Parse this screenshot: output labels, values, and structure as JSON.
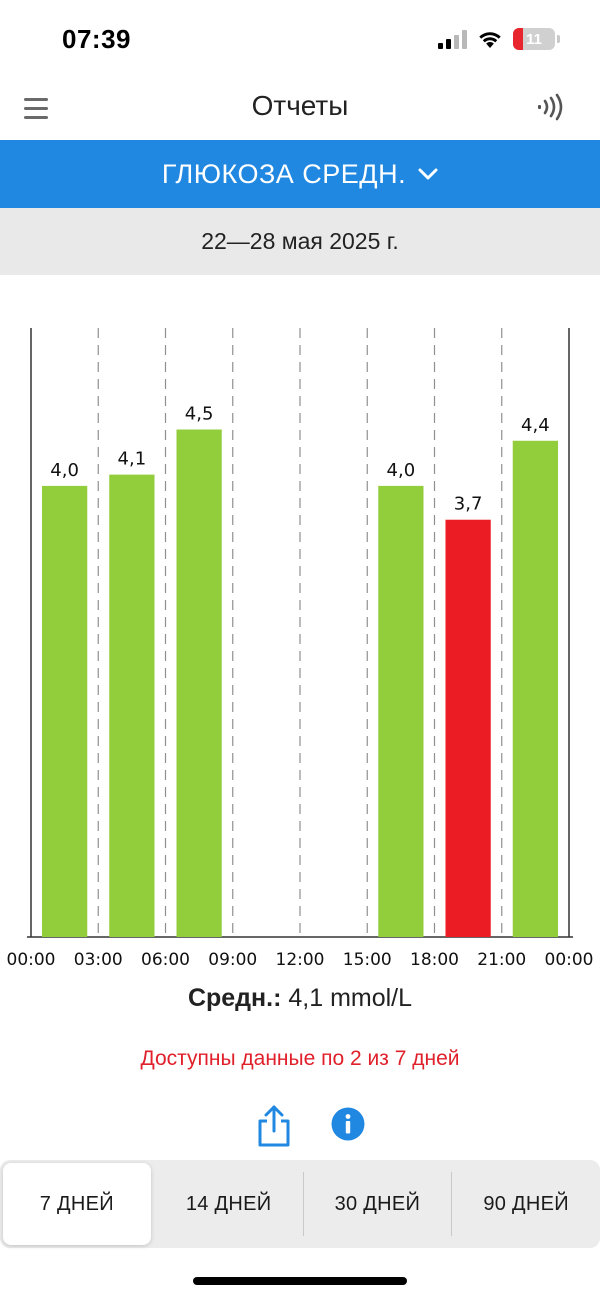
{
  "status_bar": {
    "time": "07:39",
    "battery_level": "11"
  },
  "nav": {
    "title": "Отчеты"
  },
  "metric_selector": {
    "label": "ГЛЮКОЗА СРЕДН."
  },
  "date_range": "22—28 мая 2025 г.",
  "chart_data": {
    "type": "bar",
    "categories": [
      "00:00",
      "03:00",
      "06:00",
      "09:00",
      "12:00",
      "15:00",
      "18:00",
      "21:00"
    ],
    "tick_labels": [
      "00:00",
      "03:00",
      "06:00",
      "09:00",
      "12:00",
      "15:00",
      "18:00",
      "21:00",
      "00:00"
    ],
    "values": [
      4.0,
      4.1,
      4.5,
      null,
      null,
      4.0,
      3.7,
      4.4
    ],
    "value_labels": [
      "4,0",
      "4,1",
      "4,5",
      "",
      "",
      "4,0",
      "3,7",
      "4,4"
    ],
    "bar_colors": [
      "#92cd3c",
      "#92cd3c",
      "#92cd3c",
      "",
      "",
      "#92cd3c",
      "#ec1c24",
      "#92cd3c"
    ],
    "ylim": [
      0,
      5.4
    ],
    "grid": "dashed vertical lines between time slots",
    "title": "",
    "xlabel": "",
    "ylabel": ""
  },
  "average": {
    "label": "Средн.:",
    "value": "4,1 mmol/L"
  },
  "data_note": "Доступны данные по 2 из 7 дней",
  "actions": {
    "share_icon": "share-icon",
    "info_icon": "info-icon"
  },
  "periods": {
    "options": [
      "7 ДНЕЙ",
      "14 ДНЕЙ",
      "30 ДНЕЙ",
      "90 ДНЕЙ"
    ],
    "selected_index": 0
  },
  "colors": {
    "accent_blue": "#2188e2",
    "bar_green": "#92cd3c",
    "bar_red": "#ec1c24",
    "note_red": "#e0202a"
  }
}
